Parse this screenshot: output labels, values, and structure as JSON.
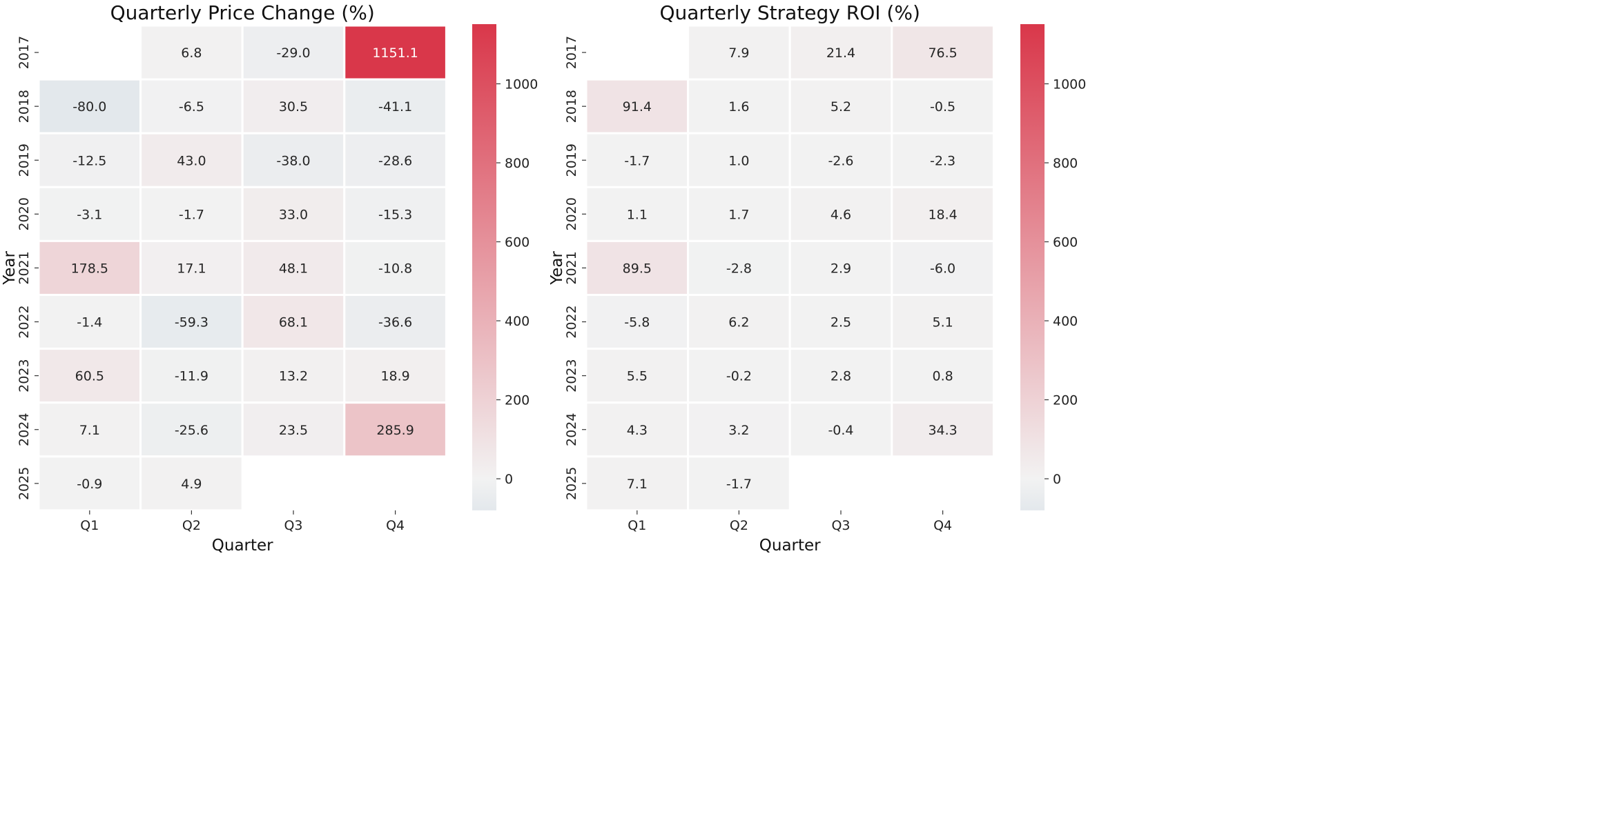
{
  "chart_data": [
    {
      "type": "heatmap",
      "title": "Quarterly Price Change (%)",
      "xlabel": "Quarter",
      "ylabel": "Year",
      "x": [
        "Q1",
        "Q2",
        "Q3",
        "Q4"
      ],
      "y": [
        "2017",
        "2018",
        "2019",
        "2020",
        "2021",
        "2022",
        "2023",
        "2024",
        "2025"
      ],
      "values": [
        [
          null,
          6.8,
          -29.0,
          1151.1
        ],
        [
          -80.0,
          -6.5,
          30.5,
          -41.1
        ],
        [
          -12.5,
          43.0,
          -38.0,
          -28.6
        ],
        [
          -3.1,
          -1.7,
          33.0,
          -15.3
        ],
        [
          178.5,
          17.1,
          48.1,
          -10.8
        ],
        [
          -1.4,
          -59.3,
          68.1,
          -36.6
        ],
        [
          60.5,
          -11.9,
          13.2,
          18.9
        ],
        [
          7.1,
          -25.6,
          23.5,
          285.9
        ],
        [
          -0.9,
          4.9,
          null,
          null
        ]
      ],
      "colorbar": {
        "vmin": -80,
        "vmax": 1151.1,
        "center": 0,
        "ticks": [
          0,
          200,
          400,
          600,
          800,
          1000
        ],
        "cmap": "diverging blue-grey to red",
        "low_color": "#e3e8ec",
        "mid_color": "#f2f2f2",
        "high_color": "#d9374a"
      },
      "annotations_on": true,
      "legend": "colorbar right"
    },
    {
      "type": "heatmap",
      "title": "Quarterly Strategy ROI (%)",
      "xlabel": "Quarter",
      "ylabel": "Year",
      "x": [
        "Q1",
        "Q2",
        "Q3",
        "Q4"
      ],
      "y": [
        "2017",
        "2018",
        "2019",
        "2020",
        "2021",
        "2022",
        "2023",
        "2024",
        "2025"
      ],
      "values": [
        [
          null,
          7.9,
          21.4,
          76.5
        ],
        [
          91.4,
          1.6,
          5.2,
          -0.5
        ],
        [
          -1.7,
          1.0,
          -2.6,
          -2.3
        ],
        [
          1.1,
          1.7,
          4.6,
          18.4
        ],
        [
          89.5,
          -2.8,
          2.9,
          -6.0
        ],
        [
          -5.8,
          6.2,
          2.5,
          5.1
        ],
        [
          5.5,
          -0.2,
          2.8,
          0.8
        ],
        [
          4.3,
          3.2,
          -0.4,
          34.3
        ],
        [
          7.1,
          -1.7,
          null,
          null
        ]
      ],
      "colorbar": {
        "vmin": -80,
        "vmax": 1151.1,
        "center": 0,
        "ticks": [
          0,
          200,
          400,
          600,
          800,
          1000
        ],
        "cmap": "diverging blue-grey to red",
        "low_color": "#e3e8ec",
        "mid_color": "#f2f2f2",
        "high_color": "#d9374a"
      },
      "annotations_on": true,
      "legend": "colorbar right"
    }
  ]
}
